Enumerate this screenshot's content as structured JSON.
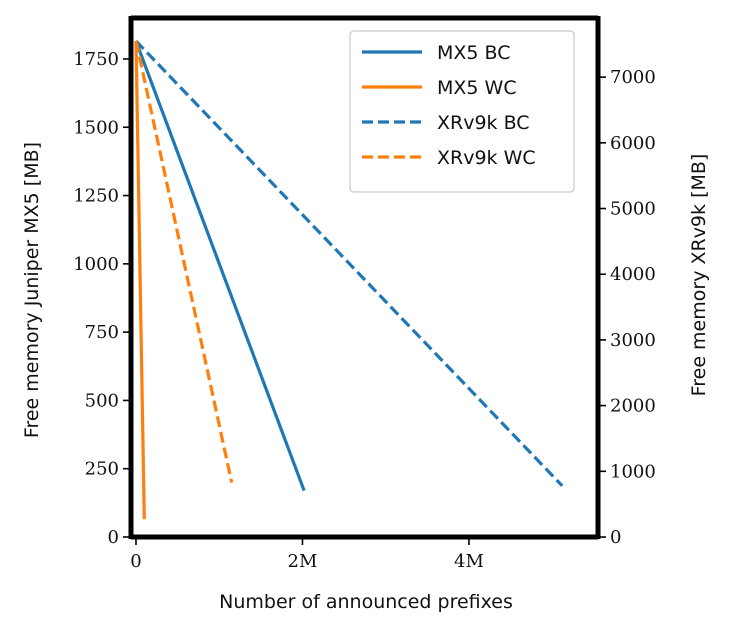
{
  "chart_data": {
    "type": "line",
    "xlabel": "Number of announced prefixes",
    "ylabel_left": "Free memory Juniper MX5 [MB]",
    "ylabel_right": "Free memory XRv9k [MB]",
    "xlim": [
      -60000,
      5550000
    ],
    "ylim_left": [
      0,
      1900
    ],
    "ylim_right": [
      0,
      7900
    ],
    "x_ticks": [
      0,
      2000000,
      4000000
    ],
    "x_tick_labels": [
      "0",
      "2M",
      "4M"
    ],
    "y_ticks_left": [
      0,
      250,
      500,
      750,
      1000,
      1250,
      1500,
      1750
    ],
    "y_ticks_right": [
      0,
      1000,
      2000,
      3000,
      4000,
      5000,
      6000,
      7000
    ],
    "legend_position": "top-right",
    "grid": false,
    "series": [
      {
        "name": "MX5 BC",
        "axis": "left",
        "color": "#1f77b4",
        "dash": "solid",
        "x": [
          0,
          2020000
        ],
        "y": [
          1815,
          170
        ]
      },
      {
        "name": "MX5 WC",
        "axis": "left",
        "color": "#ff7f0e",
        "dash": "solid",
        "x": [
          0,
          100000
        ],
        "y": [
          1815,
          65
        ]
      },
      {
        "name": "XRv9k BC",
        "axis": "right",
        "color": "#1f77b4",
        "dash": "dashed",
        "x": [
          0,
          5120000
        ],
        "y": [
          7550,
          780
        ]
      },
      {
        "name": "XRv9k WC",
        "axis": "right",
        "color": "#ff7f0e",
        "dash": "dashed",
        "x": [
          0,
          1150000
        ],
        "y": [
          7550,
          830
        ]
      }
    ]
  }
}
